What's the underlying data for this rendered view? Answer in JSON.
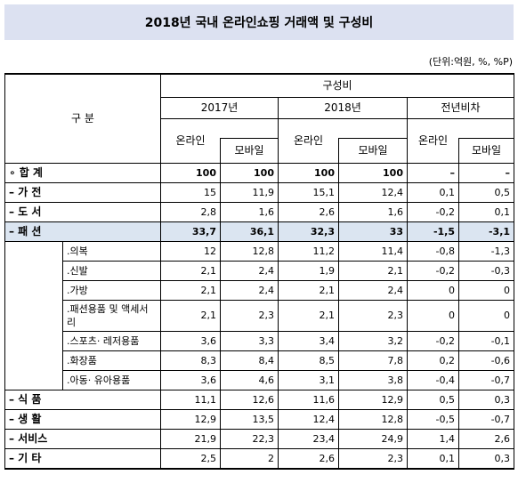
{
  "title": "2018년 국내 온라인쇼핑 거래액 및 구성비",
  "unit": "(단위:억원, %, %P)",
  "table": {
    "corner": "구 분",
    "group": "구성비",
    "years": [
      "2017년",
      "2018년",
      "전년비차"
    ],
    "subheaders": [
      "온라인",
      "모바일",
      "온라인",
      "모바일",
      "온라인",
      "모바일"
    ],
    "rows": [
      {
        "label": "∘ 합 계",
        "values": [
          "100",
          "100",
          "100",
          "100",
          "–",
          "–"
        ]
      },
      {
        "label": "– 가 전",
        "values": [
          "15",
          "11,9",
          "15,1",
          "12,4",
          "0,1",
          "0,5"
        ]
      },
      {
        "label": "– 도 서",
        "values": [
          "2,8",
          "1,6",
          "2,6",
          "1,6",
          "-0,2",
          "0,1"
        ]
      },
      {
        "label": "– 패 션",
        "highlight": true,
        "values": [
          "33,7",
          "36,1",
          "32,3",
          "33",
          "-1,5",
          "-3,1"
        ],
        "children": [
          {
            "label": ".의복",
            "values": [
              "12",
              "12,8",
              "11,2",
              "11,4",
              "-0,8",
              "-1,3"
            ]
          },
          {
            "label": ".신발",
            "values": [
              "2,1",
              "2,4",
              "1,9",
              "2,1",
              "-0,2",
              "-0,3"
            ]
          },
          {
            "label": ".가방",
            "values": [
              "2,1",
              "2,4",
              "2,1",
              "2,4",
              "0",
              "0"
            ]
          },
          {
            "label": ".패션용품 및 액세서리",
            "values": [
              "2,1",
              "2,3",
              "2,1",
              "2,3",
              "0",
              "0"
            ]
          },
          {
            "label": ".스포츠· 레저용품",
            "values": [
              "3,6",
              "3,3",
              "3,4",
              "3,2",
              "-0,2",
              "-0,1"
            ]
          },
          {
            "label": ".화장품",
            "values": [
              "8,3",
              "8,4",
              "8,5",
              "7,8",
              "0,2",
              "-0,6"
            ]
          },
          {
            "label": ".아동· 유아용품",
            "values": [
              "3,6",
              "4,6",
              "3,1",
              "3,8",
              "-0,4",
              "-0,7"
            ]
          }
        ]
      },
      {
        "label": "– 식 품",
        "values": [
          "11,1",
          "12,6",
          "11,6",
          "12,9",
          "0,5",
          "0,3"
        ]
      },
      {
        "label": "– 생 활",
        "values": [
          "12,9",
          "13,5",
          "12,4",
          "12,8",
          "-0,5",
          "-0,7"
        ]
      },
      {
        "label": "– 서비스",
        "values": [
          "21,9",
          "22,3",
          "23,4",
          "24,9",
          "1,4",
          "2,6"
        ]
      },
      {
        "label": "– 기 타",
        "values": [
          "2,5",
          "2",
          "2,6",
          "2,3",
          "0,1",
          "0,3"
        ]
      }
    ]
  }
}
